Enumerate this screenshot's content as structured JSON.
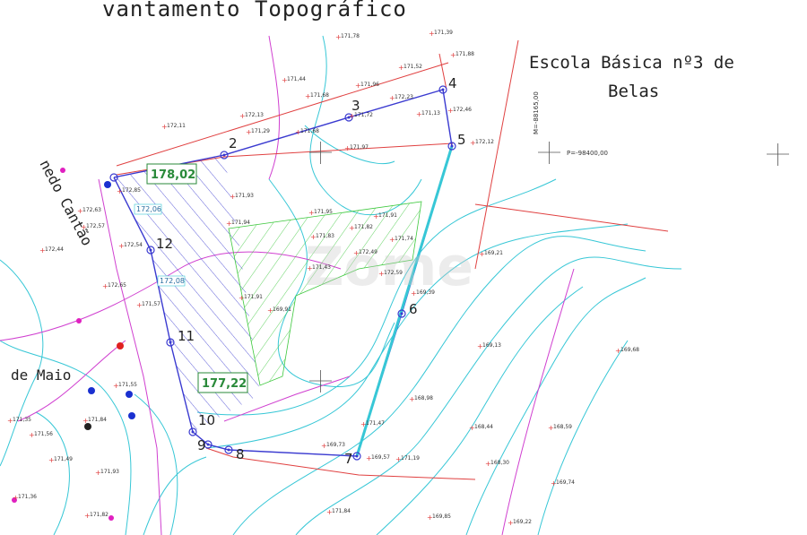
{
  "title": "vantamento Topográfico",
  "school_label": [
    "Escola Básica nº3 de",
    "Belas"
  ],
  "street_labels": [
    "de Maio",
    "nedo Cantão"
  ],
  "vertices": [
    "2",
    "3",
    "4",
    "5",
    "6",
    "7",
    "8",
    "9",
    "10",
    "11",
    "12"
  ],
  "boxed_levels": [
    "178,02",
    "177,22"
  ],
  "contour_labels": [
    "172,06",
    "172,08"
  ],
  "coordinates": [
    "M=-88165,00",
    "P=-98400,00"
  ],
  "watermark": "Zome",
  "spot_heights": [
    "171,78",
    "171,39",
    "171,52",
    "171,88",
    "171,44",
    "171,68",
    "171,96",
    "172,23",
    "172,13",
    "172,11",
    "171,29",
    "171,68",
    "171,97",
    "171,72",
    "171,13",
    "172,46",
    "172,12",
    "171,93",
    "171,94",
    "171,95",
    "171,82",
    "171,83",
    "171,91",
    "171,74",
    "172,49",
    "172,59",
    "171,91",
    "169,91",
    "169,39",
    "169,21",
    "169,13",
    "169,68",
    "168,98",
    "168,44",
    "168,59",
    "168,30",
    "169,74",
    "169,22",
    "169,85",
    "171,84",
    "171,47",
    "169,73",
    "169,57",
    "171,19",
    "171,93",
    "171,43",
    "171,56",
    "171,49",
    "172,57",
    "172,54",
    "172,63",
    "172,85",
    "171,57",
    "171,55",
    "171,84",
    "171,35",
    "171,36",
    "172,44",
    "172,65",
    "171,82"
  ]
}
